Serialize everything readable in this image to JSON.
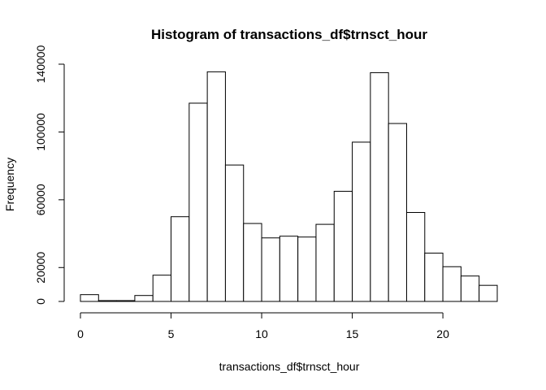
{
  "chart_data": {
    "type": "bar",
    "subtype": "histogram",
    "title": "Histogram of transactions_df$trnsct_hour",
    "xlabel": "transactions_df$trnsct_hour",
    "ylabel": "Frequency",
    "bins": [
      [
        0,
        1
      ],
      [
        1,
        2
      ],
      [
        2,
        3
      ],
      [
        3,
        4
      ],
      [
        4,
        5
      ],
      [
        5,
        6
      ],
      [
        6,
        7
      ],
      [
        7,
        8
      ],
      [
        8,
        9
      ],
      [
        9,
        10
      ],
      [
        10,
        11
      ],
      [
        11,
        12
      ],
      [
        12,
        13
      ],
      [
        13,
        14
      ],
      [
        14,
        15
      ],
      [
        15,
        16
      ],
      [
        16,
        17
      ],
      [
        17,
        18
      ],
      [
        18,
        19
      ],
      [
        19,
        20
      ],
      [
        20,
        21
      ],
      [
        21,
        22
      ],
      [
        22,
        23
      ]
    ],
    "values": [
      4000,
      500,
      500,
      3500,
      15500,
      50000,
      117000,
      135500,
      80500,
      46000,
      37500,
      38500,
      38000,
      45500,
      65000,
      94000,
      135000,
      105000,
      52500,
      28500,
      20500,
      15000,
      9500
    ],
    "xlim": [
      0,
      23
    ],
    "ylim": [
      0,
      140000
    ],
    "x_ticks": [
      0,
      5,
      10,
      15,
      20
    ],
    "x_tick_labels": [
      "0",
      "5",
      "10",
      "15",
      "20"
    ],
    "y_ticks": [
      0,
      20000,
      60000,
      100000,
      140000
    ],
    "y_tick_labels": [
      "0",
      "20000",
      "60000",
      "100000",
      "140000"
    ],
    "grid": false,
    "bar_fill": "#ffffff",
    "bar_stroke": "#000000"
  }
}
